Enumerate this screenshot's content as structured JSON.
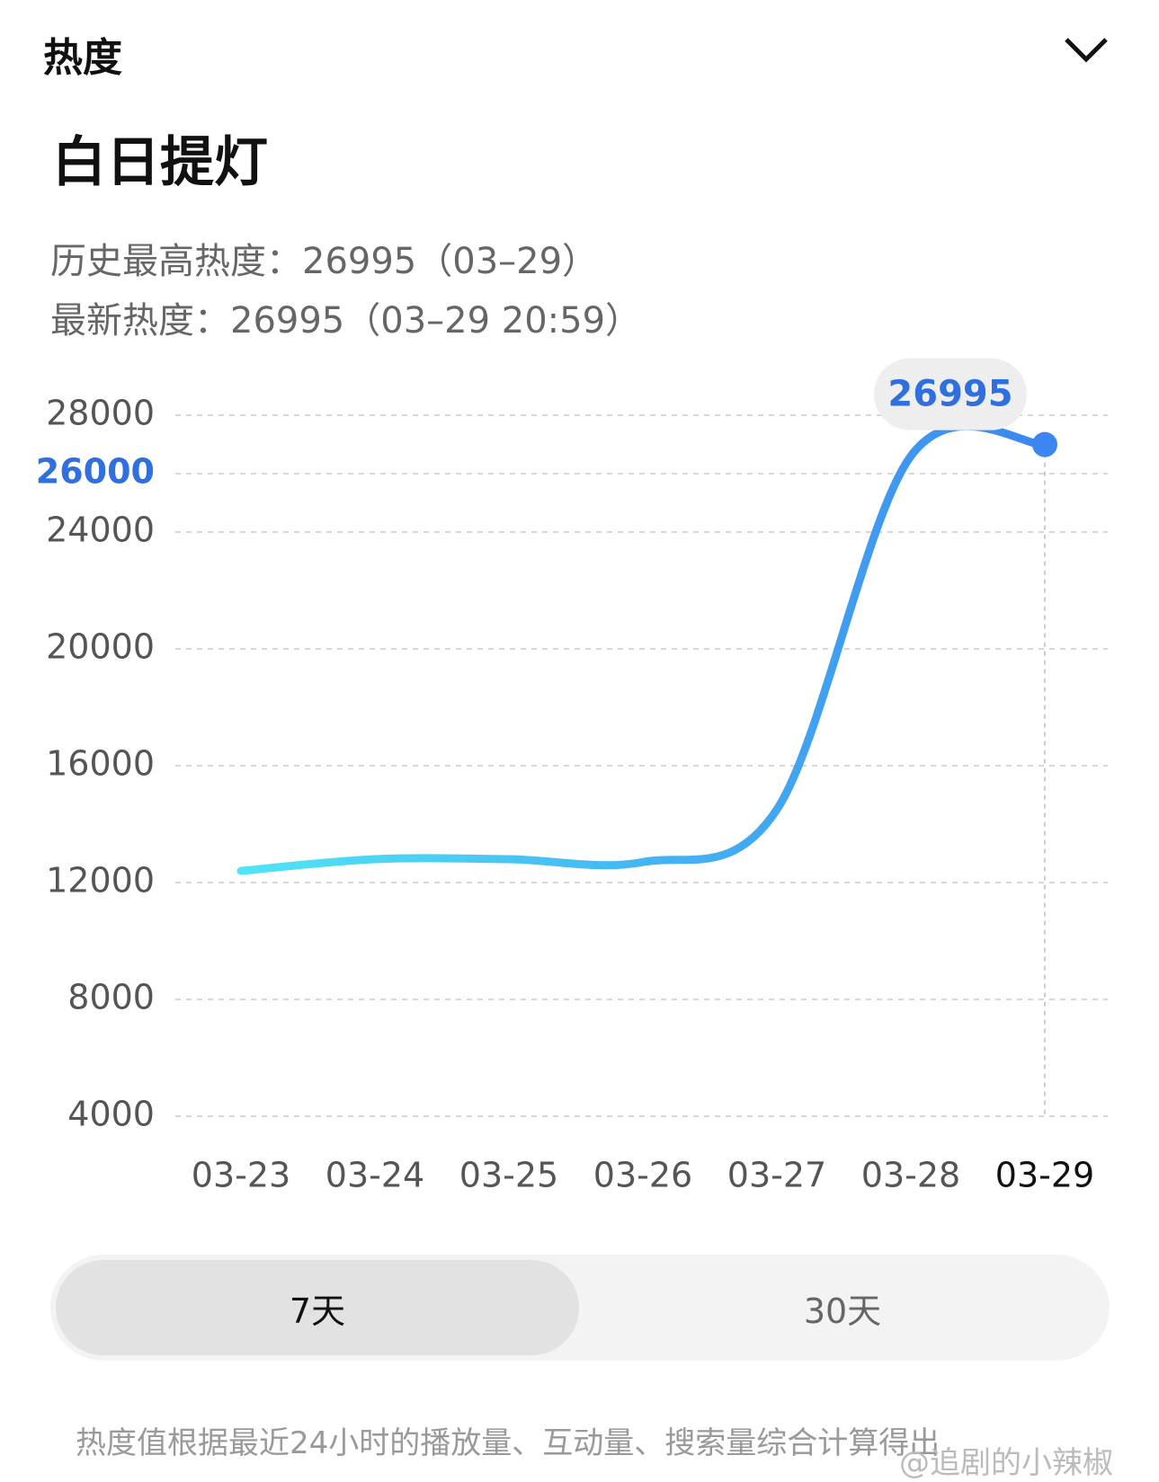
{
  "header": {
    "title": "热度"
  },
  "show_title": "白日提灯",
  "stats": [
    "历史最高热度：26995（03–29）",
    "最新热度：26995（03–29 20:59）"
  ],
  "chart_data": {
    "type": "line",
    "categories": [
      "03-23",
      "03-24",
      "03-25",
      "03-26",
      "03-27",
      "03-28",
      "03-29"
    ],
    "values": [
      12400,
      12800,
      12800,
      12700,
      14500,
      26600,
      26995
    ],
    "color": "#3b86f0",
    "ylim": [
      4000,
      28000
    ],
    "yticks": [
      4000,
      8000,
      12000,
      16000,
      20000,
      24000,
      28000
    ],
    "reference_tick": 26000,
    "grid": true
  },
  "tabs": [
    "7天",
    "30天"
  ],
  "footnote": "热度值根据最近24小时的播放量、互动量、搜索量综合计算得出",
  "watermark": "@追剧的小辣椒"
}
